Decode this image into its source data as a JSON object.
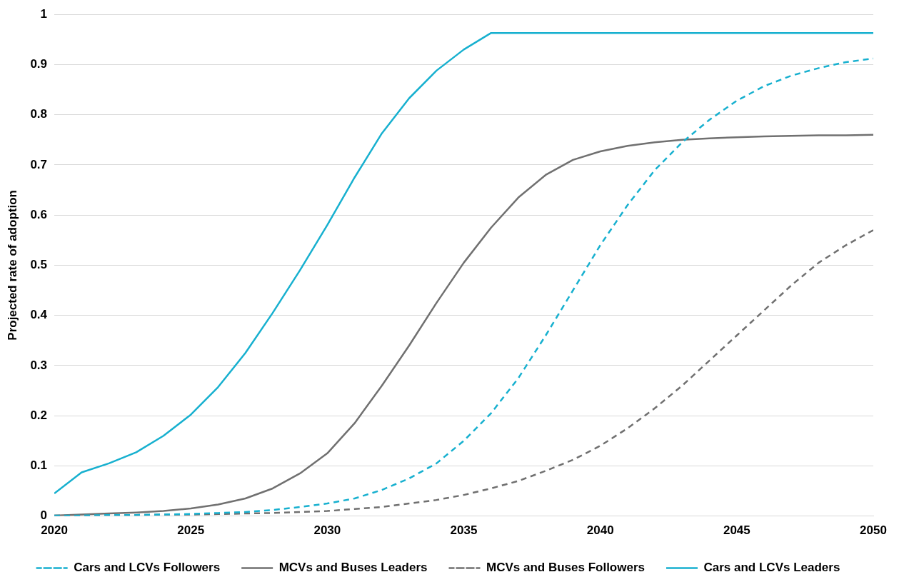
{
  "chart_data": {
    "type": "line",
    "ylabel": "Projected rate of adoption",
    "x": [
      2020,
      2021,
      2022,
      2023,
      2024,
      2025,
      2026,
      2027,
      2028,
      2029,
      2030,
      2031,
      2032,
      2033,
      2034,
      2035,
      2036,
      2037,
      2038,
      2039,
      2040,
      2041,
      2042,
      2043,
      2044,
      2045,
      2046,
      2047,
      2048,
      2049,
      2050
    ],
    "xlim": [
      2020,
      2050
    ],
    "xticks": [
      2020,
      2025,
      2030,
      2035,
      2040,
      2045,
      2050
    ],
    "ylim": [
      0,
      1
    ],
    "yticks": [
      0,
      0.1,
      0.2,
      0.3,
      0.4,
      0.5,
      0.6,
      0.7,
      0.8,
      0.9,
      1
    ],
    "grid": "y",
    "legend": "bottom",
    "marker": "none",
    "series": [
      {
        "name": "Cars and LCVs Followers",
        "color": "#17b0cf",
        "line_style": "dashed",
        "values": [
          0.001,
          0.001,
          0.002,
          0.002,
          0.003,
          0.004,
          0.006,
          0.008,
          0.012,
          0.018,
          0.025,
          0.035,
          0.052,
          0.075,
          0.105,
          0.15,
          0.205,
          0.275,
          0.36,
          0.45,
          0.54,
          0.62,
          0.69,
          0.745,
          0.79,
          0.828,
          0.857,
          0.878,
          0.893,
          0.905,
          0.912
        ]
      },
      {
        "name": "MCVs and Buses Leaders",
        "color": "#707070",
        "line_style": "solid",
        "values": [
          0.001,
          0.003,
          0.005,
          0.007,
          0.01,
          0.015,
          0.023,
          0.035,
          0.055,
          0.085,
          0.125,
          0.185,
          0.26,
          0.34,
          0.425,
          0.505,
          0.575,
          0.635,
          0.68,
          0.71,
          0.727,
          0.738,
          0.745,
          0.75,
          0.753,
          0.755,
          0.757,
          0.758,
          0.759,
          0.759,
          0.76
        ]
      },
      {
        "name": "MCVs and Buses Followers",
        "color": "#707070",
        "line_style": "dashed",
        "values": [
          0.001,
          0.001,
          0.002,
          0.002,
          0.003,
          0.003,
          0.004,
          0.005,
          0.006,
          0.008,
          0.01,
          0.014,
          0.018,
          0.025,
          0.032,
          0.042,
          0.055,
          0.07,
          0.09,
          0.112,
          0.14,
          0.175,
          0.215,
          0.26,
          0.31,
          0.36,
          0.41,
          0.46,
          0.505,
          0.54,
          0.57
        ]
      },
      {
        "name": "Cars and LCVs Leaders",
        "color": "#17b0cf",
        "line_style": "solid",
        "values": [
          0.045,
          0.087,
          0.105,
          0.127,
          0.16,
          0.202,
          0.257,
          0.325,
          0.405,
          0.49,
          0.58,
          0.675,
          0.763,
          0.833,
          0.888,
          0.93,
          0.963,
          0.963,
          0.963,
          0.963,
          0.963,
          0.963,
          0.963,
          0.963,
          0.963,
          0.963,
          0.963,
          0.963,
          0.963,
          0.963,
          0.963
        ]
      }
    ]
  }
}
